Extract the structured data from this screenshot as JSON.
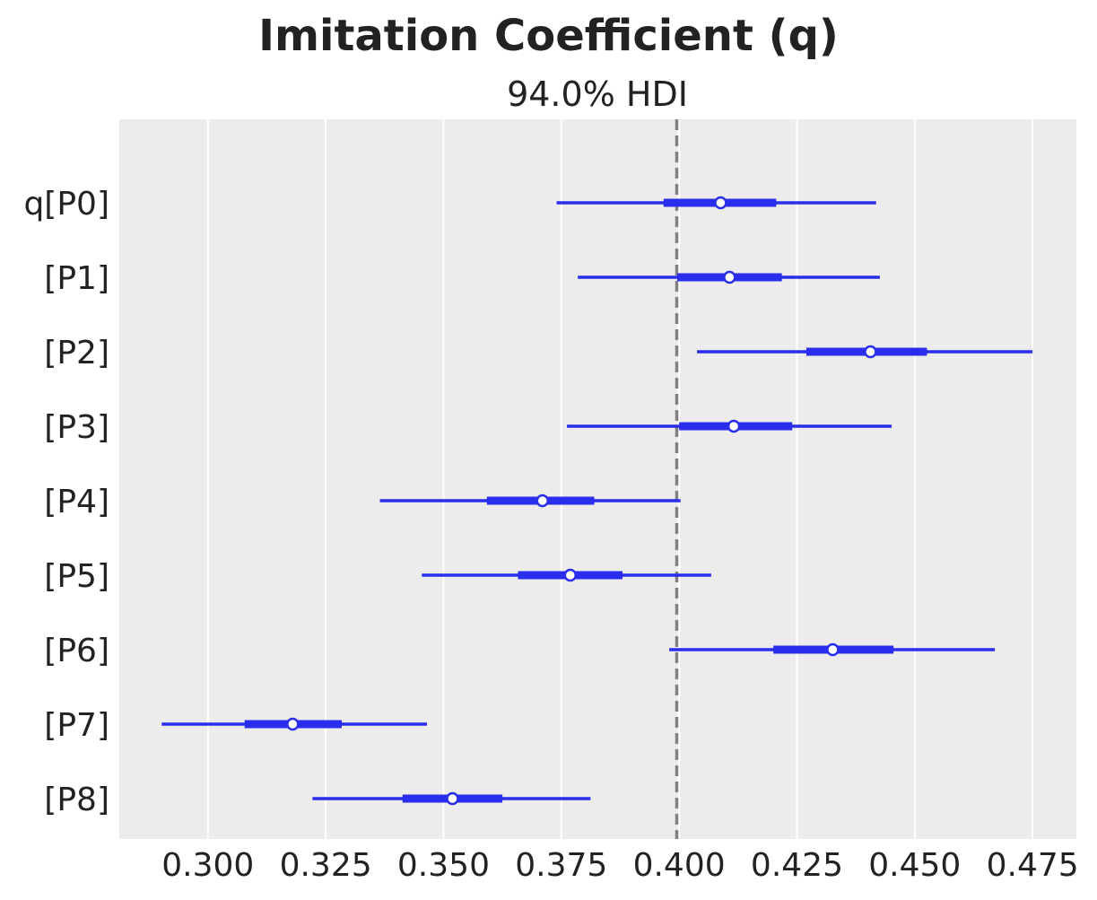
{
  "chart_data": {
    "type": "forest",
    "title": "Imitation Coefficient (q)",
    "subtitle": "94.0% HDI",
    "xlabel": "",
    "ylabel": "",
    "xlim": [
      0.2812,
      0.4843
    ],
    "x_ticks": [
      0.3,
      0.325,
      0.35,
      0.375,
      0.4,
      0.425,
      0.45,
      0.475
    ],
    "x_tick_labels": [
      "0.300",
      "0.325",
      "0.350",
      "0.375",
      "0.400",
      "0.425",
      "0.450",
      "0.475"
    ],
    "reference_line": 0.3995,
    "grid": true,
    "colors": {
      "series": "#2a2eec",
      "reference": "#808080",
      "background": "#ececec",
      "grid": "#ffffff",
      "text": "#222222"
    },
    "rows": [
      {
        "label": "q[P0]",
        "hdi94": [
          0.374,
          0.4418
        ],
        "iqr": [
          0.3967,
          0.4206
        ],
        "mean": 0.4088
      },
      {
        "label": "[P1]",
        "hdi94": [
          0.3785,
          0.4426
        ],
        "iqr": [
          0.3996,
          0.4218
        ],
        "mean": 0.4107
      },
      {
        "label": "[P2]",
        "hdi94": [
          0.4038,
          0.475
        ],
        "iqr": [
          0.427,
          0.4526
        ],
        "mean": 0.4406
      },
      {
        "label": "[P3]",
        "hdi94": [
          0.3762,
          0.4451
        ],
        "iqr": [
          0.4,
          0.424
        ],
        "mean": 0.4116
      },
      {
        "label": "[P4]",
        "hdi94": [
          0.3365,
          0.4003
        ],
        "iqr": [
          0.3592,
          0.382
        ],
        "mean": 0.371
      },
      {
        "label": "[P5]",
        "hdi94": [
          0.3454,
          0.4068
        ],
        "iqr": [
          0.3658,
          0.388
        ],
        "mean": 0.3769
      },
      {
        "label": "[P6]",
        "hdi94": [
          0.3979,
          0.467
        ],
        "iqr": [
          0.42,
          0.4455
        ],
        "mean": 0.4326
      },
      {
        "label": "[P7]",
        "hdi94": [
          0.2902,
          0.3465
        ],
        "iqr": [
          0.3078,
          0.3284
        ],
        "mean": 0.318
      },
      {
        "label": "[P8]",
        "hdi94": [
          0.3222,
          0.3812
        ],
        "iqr": [
          0.3413,
          0.3625
        ],
        "mean": 0.3519
      }
    ]
  }
}
